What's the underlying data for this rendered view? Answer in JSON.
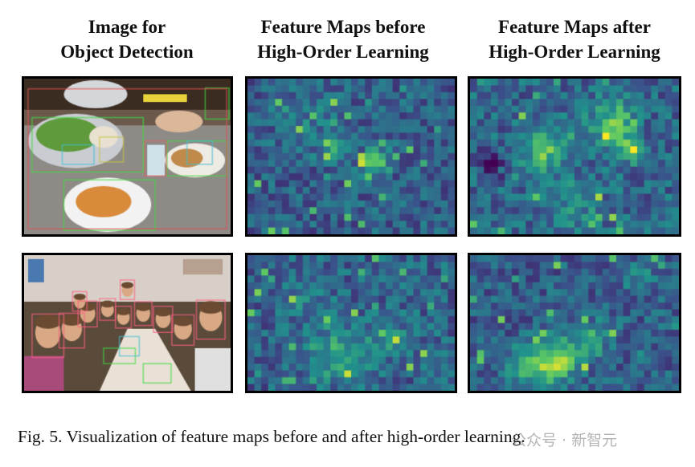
{
  "figure": {
    "column_titles": [
      [
        "Image for",
        "Object Detection"
      ],
      [
        "Feature Maps before",
        "High-Order Learning"
      ],
      [
        "Feature Maps after",
        "High-Order Learning"
      ]
    ],
    "caption": "Fig. 5.  Visualization of feature maps before and after high-order learning.",
    "rows": [
      {
        "image": "dining-table-food-detection-photo",
        "before": "feature-map-heatmap",
        "after": "feature-map-heatmap"
      },
      {
        "image": "family-dinner-people-detection-photo",
        "before": "feature-map-heatmap",
        "after": "feature-map-heatmap"
      }
    ],
    "colormap": "viridis",
    "box_colors": {
      "bowl": "#3fdc3f",
      "dining_table": "#e05050",
      "broccoli": "#40c0d0",
      "person": "#ff6080"
    }
  },
  "watermark": "公众号 · 新智元"
}
